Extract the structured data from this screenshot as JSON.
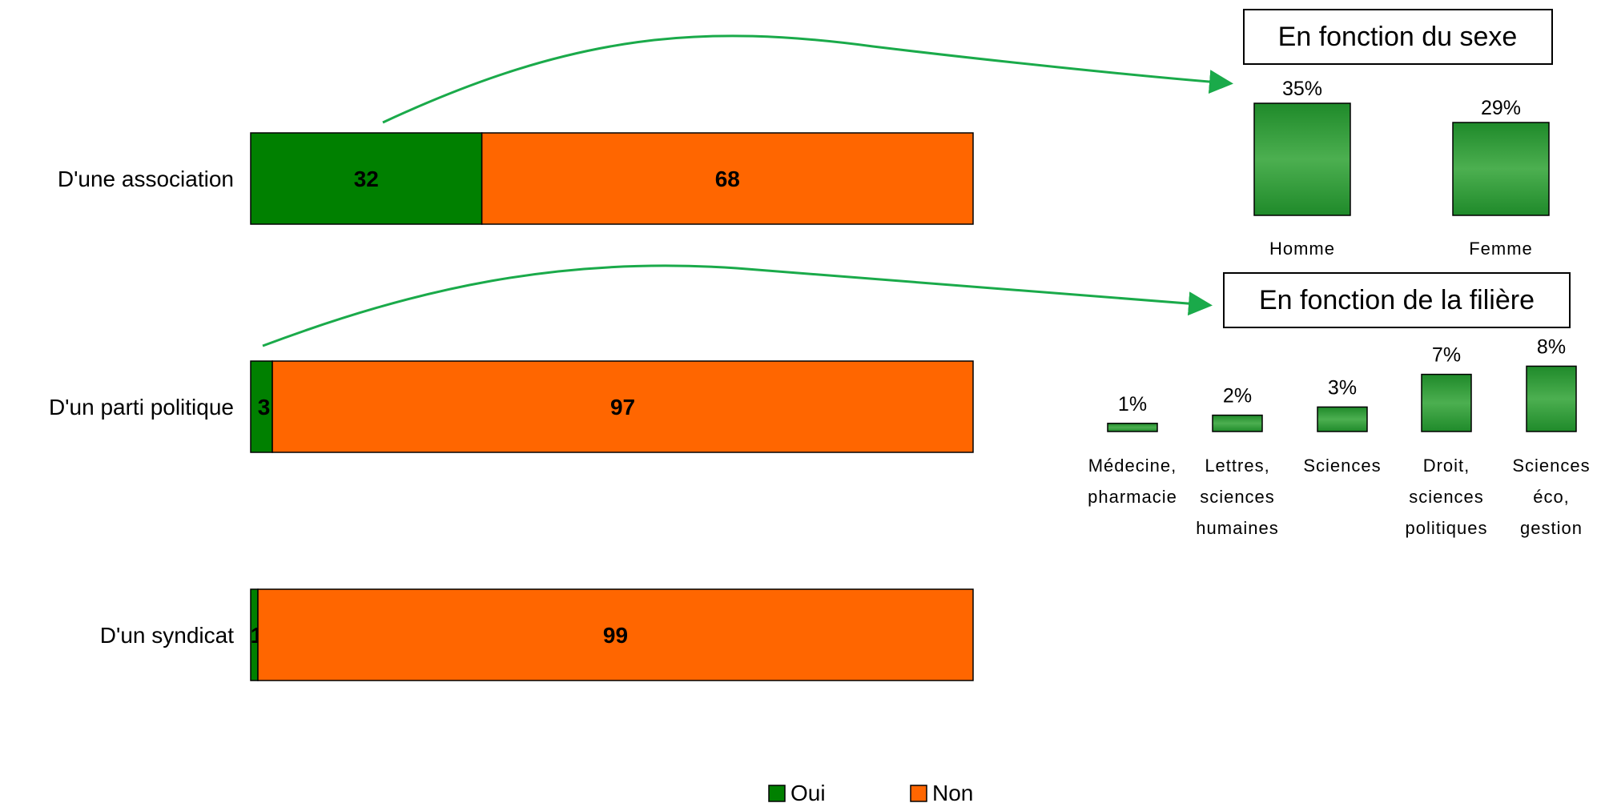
{
  "chart_data": [
    {
      "type": "bar",
      "orientation": "horizontal",
      "stacked": true,
      "categories": [
        "D'une association",
        "D'un parti politique",
        "D'un syndicat"
      ],
      "series": [
        {
          "name": "Oui",
          "values": [
            32,
            3,
            1
          ],
          "color": "#008000"
        },
        {
          "name": "Non",
          "values": [
            68,
            97,
            99
          ],
          "color": "#ff6600"
        }
      ],
      "xlim": [
        0,
        100
      ],
      "legend": "bottom",
      "grid": false
    },
    {
      "type": "bar",
      "title": "En fonction du sexe",
      "categories": [
        "Homme",
        "Femme"
      ],
      "values": [
        35,
        29
      ],
      "labels": [
        "35%",
        "29%"
      ],
      "color": "#3a9a3a"
    },
    {
      "type": "bar",
      "title": "En fonction de la filière",
      "categories": [
        [
          "Médecine,",
          "pharmacie"
        ],
        [
          "Lettres,",
          "sciences",
          "humaines"
        ],
        [
          "Sciences"
        ],
        [
          "Droit,",
          "sciences",
          "politiques"
        ],
        [
          "Sciences",
          "éco,",
          "gestion"
        ]
      ],
      "values": [
        1,
        2,
        3,
        7,
        8
      ],
      "labels": [
        "1%",
        "2%",
        "3%",
        "7%",
        "8%"
      ],
      "color": "#3a9a3a"
    }
  ]
}
